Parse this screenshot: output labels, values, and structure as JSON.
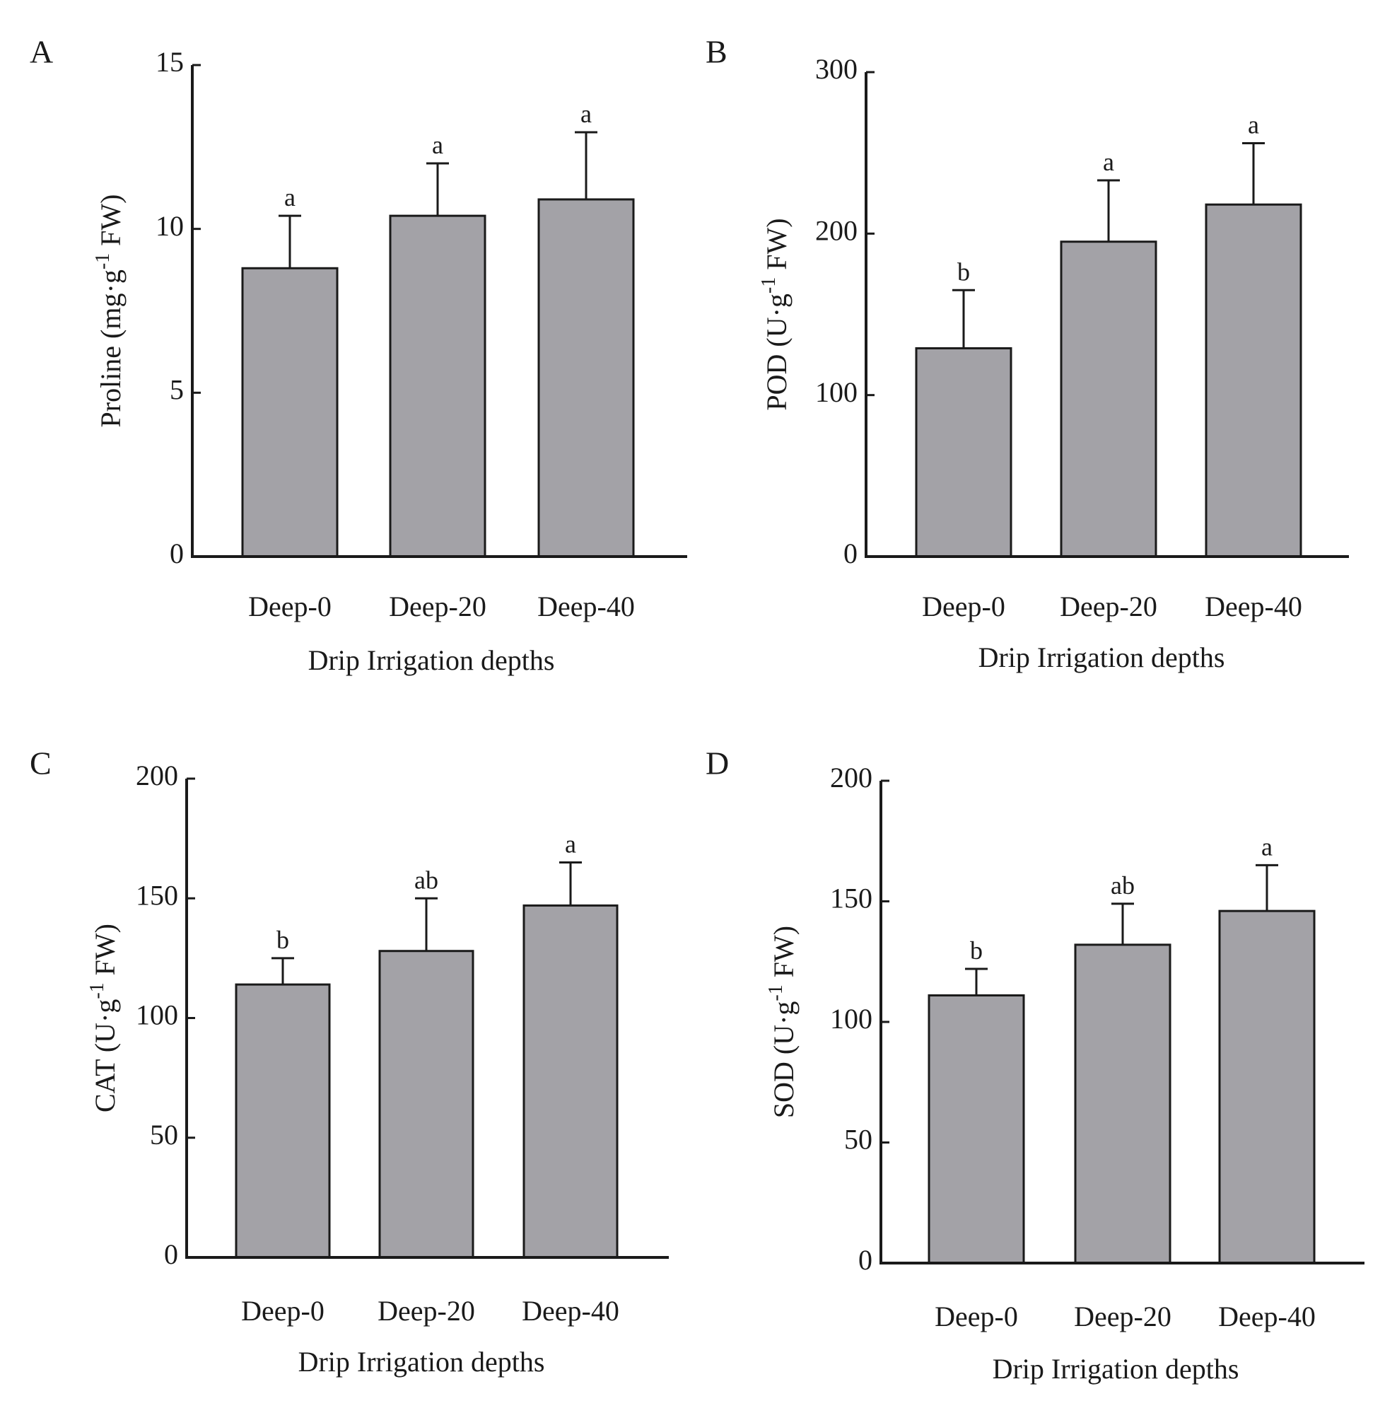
{
  "chart_data": [
    {
      "panel_label": "A",
      "type": "bar",
      "categories": [
        "Deep-0",
        "Deep-20",
        "Deep-40"
      ],
      "values": [
        8.8,
        10.4,
        10.9
      ],
      "errors": [
        1.6,
        1.6,
        2.05
      ],
      "letters": [
        "a",
        "a",
        "a"
      ],
      "ylim": [
        0,
        15
      ],
      "yticks": [
        "0",
        "5",
        "10",
        "15"
      ],
      "ylabel_main": "Proline (mg·g",
      "ylabel_sup": "-1",
      "ylabel_end": " FW)",
      "xlabel": "Drip Irrigation depths"
    },
    {
      "panel_label": "B",
      "type": "bar",
      "categories": [
        "Deep-0",
        "Deep-20",
        "Deep-40"
      ],
      "values": [
        129,
        195,
        218
      ],
      "errors": [
        36,
        38,
        38
      ],
      "letters": [
        "b",
        "a",
        "a"
      ],
      "ylim": [
        0,
        300
      ],
      "yticks": [
        "0",
        "100",
        "200",
        "300"
      ],
      "ylabel_main": "POD (U·g",
      "ylabel_sup": "-1",
      "ylabel_end": " FW)",
      "xlabel": "Drip Irrigation depths"
    },
    {
      "panel_label": "C",
      "type": "bar",
      "categories": [
        "Deep-0",
        "Deep-20",
        "Deep-40"
      ],
      "values": [
        114,
        128,
        147
      ],
      "errors": [
        11,
        22,
        18
      ],
      "letters": [
        "b",
        "ab",
        "a"
      ],
      "ylim": [
        0,
        200
      ],
      "yticks": [
        "0",
        "50",
        "100",
        "150",
        "200"
      ],
      "ylabel_main": "CAT (U·g",
      "ylabel_sup": "-1",
      "ylabel_end": " FW)",
      "xlabel": "Drip Irrigation depths"
    },
    {
      "panel_label": "D",
      "type": "bar",
      "categories": [
        "Deep-0",
        "Deep-20",
        "Deep-40"
      ],
      "values": [
        111,
        132,
        146
      ],
      "errors": [
        11,
        17,
        19
      ],
      "letters": [
        "b",
        "ab",
        "a"
      ],
      "ylim": [
        0,
        200
      ],
      "yticks": [
        "0",
        "50",
        "100",
        "150",
        "200"
      ],
      "ylabel_main": "SOD (U·g",
      "ylabel_sup": "-1",
      "ylabel_end": " FW)",
      "xlabel": "Drip Irrigation depths"
    }
  ],
  "colors": {
    "bar_fill": "#a3a2a7",
    "bar_stroke": "#1a1a1a",
    "axis": "#1a1a1a",
    "text": "#1a1a1a"
  }
}
